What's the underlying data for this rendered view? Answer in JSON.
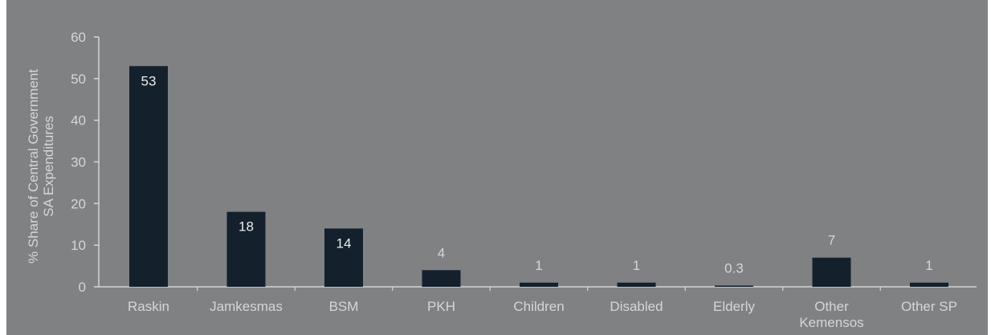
{
  "chart_data": {
    "type": "bar",
    "categories": [
      "Raskin",
      "Jamkesmas",
      "BSM",
      "PKH",
      "Children",
      "Disabled",
      "Elderly",
      "Other Kemensos",
      "Other SP"
    ],
    "category_lines": [
      [
        "Raskin"
      ],
      [
        "Jamkesmas"
      ],
      [
        "BSM"
      ],
      [
        "PKH"
      ],
      [
        "Children"
      ],
      [
        "Disabled"
      ],
      [
        "Elderly"
      ],
      [
        "Other",
        "Kemensos"
      ],
      [
        "Other SP"
      ]
    ],
    "values": [
      53,
      18,
      14,
      4,
      1,
      1,
      0.3,
      7,
      1
    ],
    "data_labels": [
      "53",
      "18",
      "14",
      "4",
      "1",
      "1",
      "0.3",
      "7",
      "1"
    ],
    "ylabel": "% Share of Central Government\nSA Expenditures",
    "ylim": [
      0,
      60
    ],
    "yticks": [
      0,
      10,
      20,
      30,
      40,
      50,
      60
    ],
    "grid": false,
    "colors": {
      "bar": "#14212d",
      "panel": "#7f8183",
      "axis": "#d4d6d8",
      "label_inside": "#e9ecef"
    }
  }
}
